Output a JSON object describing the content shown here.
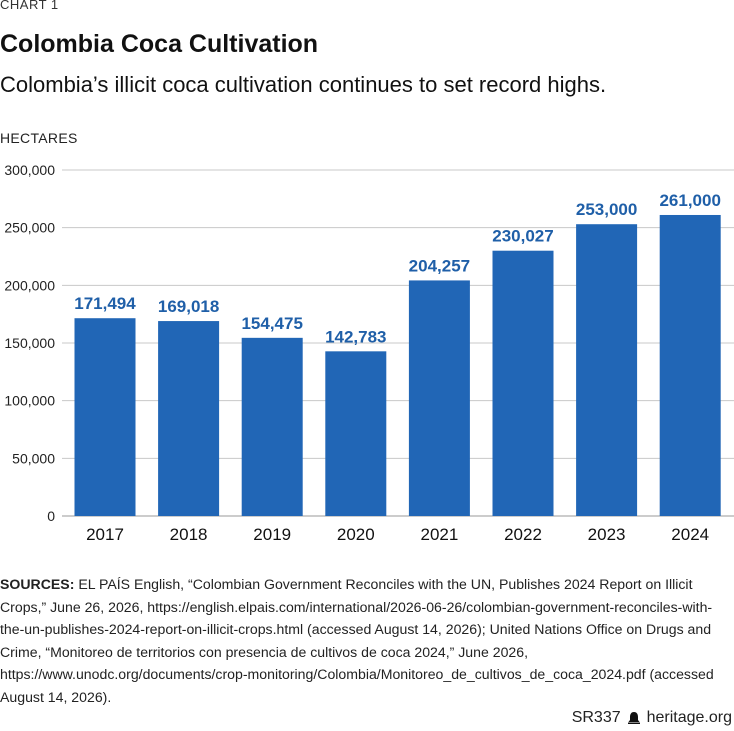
{
  "header": {
    "chart_label": "CHART 1",
    "title": "Colombia Coca Cultivation",
    "subtitle": "Colombia’s illicit coca cultivation continues to set record highs."
  },
  "colors": {
    "bar": "#2166b6",
    "data_label": "#1f5fa8",
    "grid": "#c8c8c8",
    "text": "#111111"
  },
  "chart_data": {
    "type": "bar",
    "ylabel": "HECTARES",
    "categories": [
      "2017",
      "2018",
      "2019",
      "2020",
      "2021",
      "2022",
      "2023",
      "2024"
    ],
    "values": [
      171494,
      169018,
      154475,
      142783,
      204257,
      230027,
      253000,
      261000
    ],
    "data_labels": [
      "171,494",
      "169,018",
      "154,475",
      "142,783",
      "204,257",
      "230,027",
      "253,000",
      "261,000"
    ],
    "yticks": [
      0,
      50000,
      100000,
      150000,
      200000,
      250000,
      300000
    ],
    "ytick_labels": [
      "0",
      "50,000",
      "100,000",
      "150,000",
      "200,000",
      "250,000",
      "300,000"
    ],
    "ylim": [
      0,
      300000
    ],
    "grid": true
  },
  "sources": {
    "label": "SOURCES:",
    "text": "EL PAÍS English, “Colombian Government Reconciles with the UN, Publishes 2024 Report on Illicit Crops,” June 26, 2026, https://english.elpais.com/international/2026-06-26/colombian-government-reconciles-with-the-un-publishes-2024-report-on-illicit-crops.html (accessed August 14, 2026); United Nations Office on Drugs and Crime, “Monitoreo de territorios con presencia de cultivos de coca 2024,” June 2026, https://www.unodc.org/documents/crop-monitoring/Colombia/Monitoreo_de_cultivos_de_coca_2024.pdf (accessed August 14, 2026)."
  },
  "footer": {
    "report_id": "SR337",
    "site": "heritage.org",
    "logo_icon": "bell-icon"
  }
}
